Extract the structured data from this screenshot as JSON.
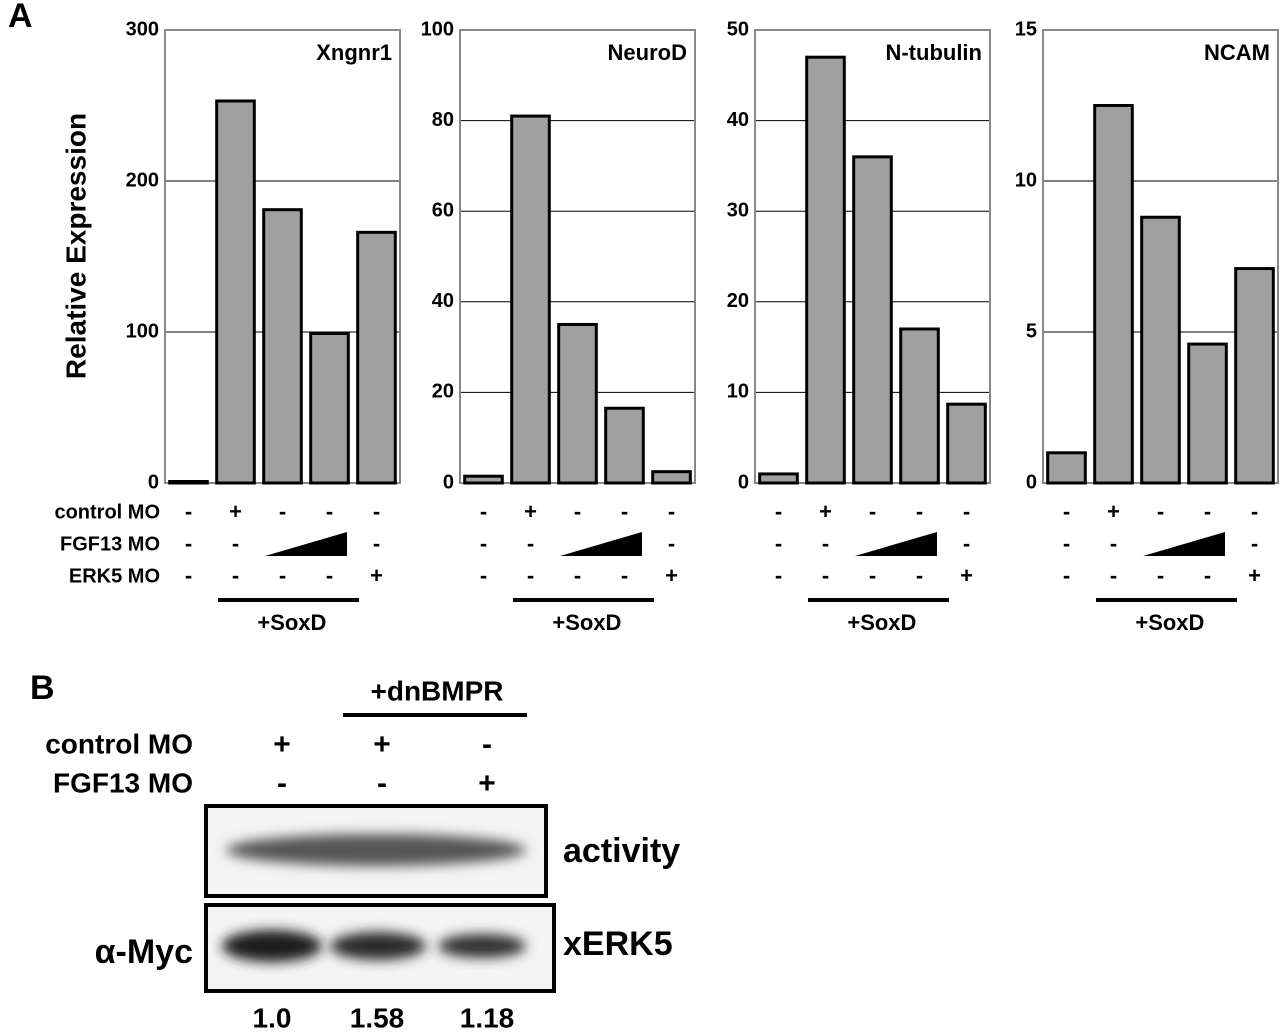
{
  "panel_a": {
    "label": "A",
    "y_label": "Relative Expression",
    "treatment_labels": [
      "control MO",
      "FGF13 MO",
      "ERK5 MO"
    ]
  },
  "chart_data": [
    {
      "type": "bar",
      "title": "Xngnr1",
      "values": [
        1,
        253,
        181,
        99,
        166
      ],
      "color": "#a0a0a0",
      "ylim": [
        0,
        300
      ],
      "yticks": [
        0,
        100,
        200,
        300
      ],
      "grid": true,
      "treatments": [
        [
          "-",
          "+",
          "-",
          "-",
          "-"
        ],
        [
          "-",
          "-",
          null,
          null,
          "-"
        ],
        [
          "-",
          "-",
          "-",
          "-",
          "+"
        ]
      ],
      "group_label": "+SoxD"
    },
    {
      "type": "bar",
      "title": "NeuroD",
      "values": [
        1.5,
        81,
        35,
        16.5,
        2.5
      ],
      "color": "#a0a0a0",
      "ylim": [
        0,
        100
      ],
      "yticks": [
        0,
        20,
        40,
        60,
        80,
        100
      ],
      "grid": true,
      "treatments": [
        [
          "-",
          "+",
          "-",
          "-",
          "-"
        ],
        [
          "-",
          "-",
          null,
          null,
          "-"
        ],
        [
          "-",
          "-",
          "-",
          "-",
          "+"
        ]
      ],
      "group_label": "+SoxD"
    },
    {
      "type": "bar",
      "title": "N-tubulin",
      "values": [
        1,
        47,
        36,
        17,
        8.7
      ],
      "color": "#a0a0a0",
      "ylim": [
        0,
        50
      ],
      "yticks": [
        0,
        10,
        20,
        30,
        40,
        50
      ],
      "grid": true,
      "treatments": [
        [
          "-",
          "+",
          "-",
          "-",
          "-"
        ],
        [
          "-",
          "-",
          null,
          null,
          "-"
        ],
        [
          "-",
          "-",
          "-",
          "-",
          "+"
        ]
      ],
      "group_label": "+SoxD"
    },
    {
      "type": "bar",
      "title": "NCAM",
      "values": [
        1,
        12.5,
        8.8,
        4.6,
        7.1
      ],
      "color": "#a0a0a0",
      "ylim": [
        0,
        15
      ],
      "yticks": [
        0,
        5,
        10,
        15
      ],
      "grid": true,
      "treatments": [
        [
          "-",
          "+",
          "-",
          "-",
          "-"
        ],
        [
          "-",
          "-",
          null,
          null,
          "-"
        ],
        [
          "-",
          "-",
          "-",
          "-",
          "+"
        ]
      ],
      "group_label": "+SoxD"
    }
  ],
  "panel_b": {
    "label": "B",
    "group_label": "+dnBMPR",
    "rows": [
      {
        "label": "control MO",
        "cells": [
          "+",
          "+",
          "-"
        ]
      },
      {
        "label": "FGF13 MO",
        "cells": [
          "-",
          "-",
          "+"
        ]
      }
    ],
    "blots": [
      {
        "right_label": "activity"
      },
      {
        "left_label": "α-Myc",
        "right_label": "xERK5"
      }
    ],
    "quantification": [
      "1.0",
      "1.58",
      "1.18"
    ]
  }
}
